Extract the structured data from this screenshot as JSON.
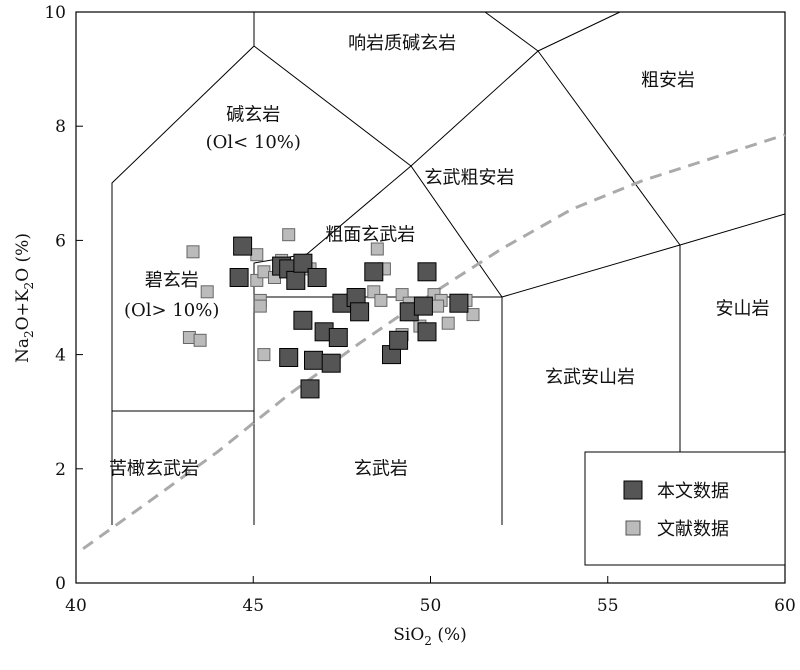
{
  "chart_data": {
    "type": "scatter",
    "title": "",
    "xlabel": "SiO2 (%)",
    "xlabel_main": "SiO",
    "xlabel_sub": "2",
    "xlabel_tail": " (%)",
    "ylabel": "Na2O+K2O (%)",
    "ylabel_parts": [
      "Na",
      "2",
      "O+K",
      "2",
      "O (%)"
    ],
    "xlim": [
      40,
      60
    ],
    "ylim": [
      0,
      10
    ],
    "xticks": [
      40,
      45,
      50,
      55,
      60
    ],
    "yticks": [
      0,
      2,
      4,
      6,
      8,
      10
    ],
    "field_labels": [
      {
        "name": "field-phonotephrite",
        "text": "响岩质碱玄岩",
        "x": 49.2,
        "y": 9.35
      },
      {
        "name": "field-trachyandesite",
        "text": "粗安岩",
        "x": 56.7,
        "y": 8.7
      },
      {
        "name": "field-basanite",
        "text": "碱玄岩",
        "x": 45.0,
        "y": 8.1
      },
      {
        "name": "field-basanite-note",
        "text": "(Ol< 10%)",
        "x": 45.0,
        "y": 7.62
      },
      {
        "name": "field-basaltic-trachyandesite",
        "text": "玄武粗安岩",
        "x": 51.1,
        "y": 7.0
      },
      {
        "name": "field-trachybasalt",
        "text": "粗面玄武岩",
        "x": 48.3,
        "y": 6.0
      },
      {
        "name": "field-tephrite",
        "text": "碧玄岩",
        "x": 42.7,
        "y": 5.2
      },
      {
        "name": "field-tephrite-note",
        "text": "(Ol> 10%)",
        "x": 42.7,
        "y": 4.68
      },
      {
        "name": "field-andesite",
        "text": "安山岩",
        "x": 58.8,
        "y": 4.7
      },
      {
        "name": "field-basaltic-andesite",
        "text": "玄武安山岩",
        "x": 54.5,
        "y": 3.5
      },
      {
        "name": "field-basalt",
        "text": "玄武岩",
        "x": 48.6,
        "y": 1.9
      },
      {
        "name": "field-picrobasalt",
        "text": "苦橄玄武岩",
        "x": 42.2,
        "y": 1.9
      }
    ],
    "series": [
      {
        "name": "本文数据",
        "color": "#555555",
        "marker": "square-large",
        "points": [
          [
            44.7,
            5.9
          ],
          [
            44.6,
            5.35
          ],
          [
            45.8,
            5.55
          ],
          [
            46.0,
            5.5
          ],
          [
            46.2,
            5.3
          ],
          [
            46.4,
            5.6
          ],
          [
            46.8,
            5.35
          ],
          [
            46.4,
            4.6
          ],
          [
            46.0,
            3.95
          ],
          [
            46.6,
            3.4
          ],
          [
            46.7,
            3.9
          ],
          [
            47.0,
            4.4
          ],
          [
            47.2,
            3.85
          ],
          [
            47.4,
            4.3
          ],
          [
            47.5,
            4.9
          ],
          [
            47.9,
            5.0
          ],
          [
            48.0,
            4.75
          ],
          [
            48.4,
            5.45
          ],
          [
            48.9,
            4.0
          ],
          [
            49.1,
            4.25
          ],
          [
            49.4,
            4.75
          ],
          [
            49.8,
            4.85
          ],
          [
            49.9,
            5.45
          ],
          [
            49.9,
            4.4
          ],
          [
            50.8,
            4.9
          ]
        ]
      },
      {
        "name": "文献数据",
        "color": "#bbbbbb",
        "marker": "square-small",
        "points": [
          [
            43.3,
            5.8
          ],
          [
            43.7,
            5.1
          ],
          [
            45.1,
            5.75
          ],
          [
            45.1,
            5.3
          ],
          [
            45.3,
            5.45
          ],
          [
            45.6,
            5.35
          ],
          [
            45.2,
            4.95
          ],
          [
            45.2,
            4.85
          ],
          [
            45.3,
            4.0
          ],
          [
            46.0,
            6.1
          ],
          [
            45.8,
            5.65
          ],
          [
            46.2,
            5.3
          ],
          [
            46.6,
            5.5
          ],
          [
            43.2,
            4.3
          ],
          [
            43.5,
            4.25
          ],
          [
            48.5,
            5.85
          ],
          [
            48.7,
            5.5
          ],
          [
            48.4,
            5.1
          ],
          [
            49.2,
            5.05
          ],
          [
            49.4,
            4.9
          ],
          [
            49.4,
            4.7
          ],
          [
            49.2,
            4.35
          ],
          [
            49.7,
            4.5
          ],
          [
            50.1,
            5.05
          ],
          [
            50.3,
            4.95
          ],
          [
            50.5,
            4.55
          ],
          [
            51.0,
            4.95
          ],
          [
            51.2,
            4.7
          ],
          [
            50.2,
            4.85
          ],
          [
            48.6,
            4.95
          ]
        ]
      }
    ],
    "trend_line": {
      "name": "alkaline-subalkaline-divider",
      "style": "dashed",
      "color": "#aaaaaa",
      "points": [
        [
          40.2,
          0.6
        ],
        [
          42,
          1.4
        ],
        [
          44,
          2.3
        ],
        [
          46,
          3.3
        ],
        [
          48,
          4.2
        ],
        [
          50,
          5.05
        ],
        [
          52,
          5.85
        ],
        [
          54,
          6.55
        ],
        [
          56,
          7.05
        ],
        [
          58,
          7.45
        ],
        [
          60,
          7.85
        ]
      ]
    }
  },
  "legend": {
    "items": [
      {
        "label": "本文数据",
        "color": "#555555"
      },
      {
        "label": "文献数据",
        "color": "#bbbbbb"
      }
    ]
  }
}
